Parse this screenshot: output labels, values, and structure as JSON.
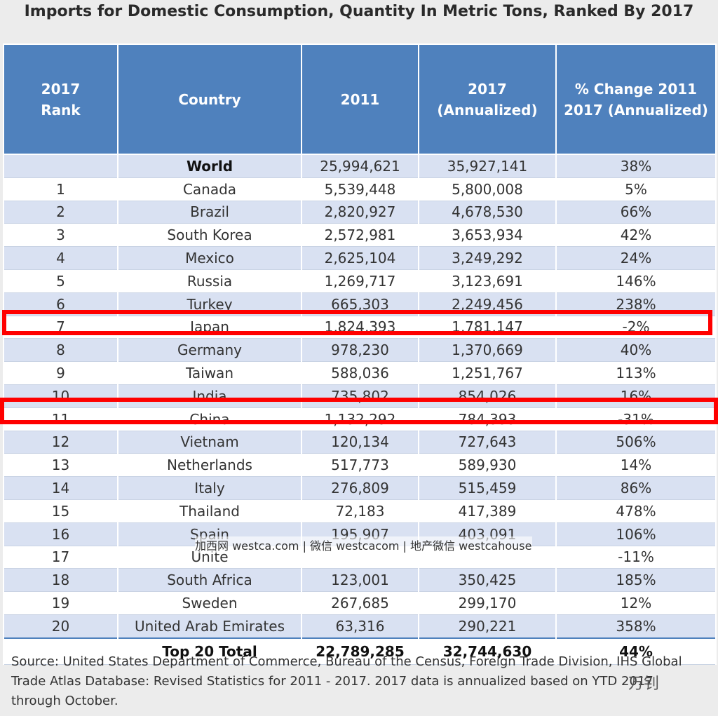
{
  "title": "Imports for Domestic Consumption, Quantity In Metric Tons, Ranked By 2017",
  "headers": {
    "rank_line1": "2017",
    "rank_line2": "Rank",
    "country": "Country",
    "y2011": "2011",
    "y2017_line1": "2017",
    "y2017_line2": "(Annualized)",
    "change_line1": "% Change 2011",
    "change_line2": "2017 (Annualized)"
  },
  "rows": [
    {
      "rank": "",
      "country": "World",
      "v2011": "25,994,621",
      "v2017": "35,927,141",
      "change": "38%"
    },
    {
      "rank": "1",
      "country": "Canada",
      "v2011": "5,539,448",
      "v2017": "5,800,008",
      "change": "5%"
    },
    {
      "rank": "2",
      "country": "Brazil",
      "v2011": "2,820,927",
      "v2017": "4,678,530",
      "change": "66%"
    },
    {
      "rank": "3",
      "country": "South Korea",
      "v2011": "2,572,981",
      "v2017": "3,653,934",
      "change": "42%"
    },
    {
      "rank": "4",
      "country": "Mexico",
      "v2011": "2,625,104",
      "v2017": "3,249,292",
      "change": "24%"
    },
    {
      "rank": "5",
      "country": "Russia",
      "v2011": "1,269,717",
      "v2017": "3,123,691",
      "change": "146%"
    },
    {
      "rank": "6",
      "country": "Turkey",
      "v2011": "665,303",
      "v2017": "2,249,456",
      "change": "238%"
    },
    {
      "rank": "7",
      "country": "Japan",
      "v2011": "1,824,393",
      "v2017": "1,781,147",
      "change": "-2%"
    },
    {
      "rank": "8",
      "country": "Germany",
      "v2011": "978,230",
      "v2017": "1,370,669",
      "change": "40%"
    },
    {
      "rank": "9",
      "country": "Taiwan",
      "v2011": "588,036",
      "v2017": "1,251,767",
      "change": "113%"
    },
    {
      "rank": "10",
      "country": "India",
      "v2011": "735,802",
      "v2017": "854,026",
      "change": "16%"
    },
    {
      "rank": "11",
      "country": "China",
      "v2011": "1,132,292",
      "v2017": "784,393",
      "change": "-31%"
    },
    {
      "rank": "12",
      "country": "Vietnam",
      "v2011": "120,134",
      "v2017": "727,643",
      "change": "506%"
    },
    {
      "rank": "13",
      "country": "Netherlands",
      "v2011": "517,773",
      "v2017": "589,930",
      "change": "14%"
    },
    {
      "rank": "14",
      "country": "Italy",
      "v2011": "276,809",
      "v2017": "515,459",
      "change": "86%"
    },
    {
      "rank": "15",
      "country": "Thailand",
      "v2011": "72,183",
      "v2017": "417,389",
      "change": "478%"
    },
    {
      "rank": "16",
      "country": "Spain",
      "v2011": "195,907",
      "v2017": "403,091",
      "change": "106%"
    },
    {
      "rank": "17",
      "country": "Unite",
      "v2011": "",
      "v2017": "",
      "change": "-11%"
    },
    {
      "rank": "18",
      "country": "South Africa",
      "v2011": "123,001",
      "v2017": "350,425",
      "change": "185%"
    },
    {
      "rank": "19",
      "country": "Sweden",
      "v2011": "267,685",
      "v2017": "299,170",
      "change": "12%"
    },
    {
      "rank": "20",
      "country": "United Arab Emirates",
      "v2011": "63,316",
      "v2017": "290,221",
      "change": "358%"
    }
  ],
  "total": {
    "label": "Top 20 Total",
    "v2011": "22,789,285",
    "v2017": "32,744,630",
    "change": "44%"
  },
  "source": "Source: United States Department of Commerce, Bureau of the Census, Foreign Trade Division, IHS Global Trade Atlas Database: Revised Statistics for 2011 - 2017.  2017 data is annualized based on YTD 2017 through October.",
  "watermark": "加西网 westca.com | 微信 westcacom | 地产微信 westcahouse",
  "wechat_mark": "万钊",
  "colors": {
    "header": "#4f81bd",
    "alt_row": "#d9e1f2",
    "highlight": "#ff0000"
  }
}
